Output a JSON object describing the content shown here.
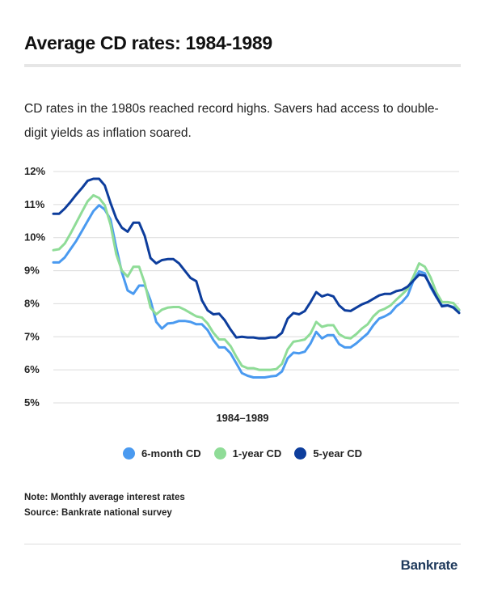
{
  "header": {
    "title": "Average CD rates: 1984-1989",
    "subtitle": "CD rates in the 1980s reached record highs. Savers had access to double-digit yields as inflation soared."
  },
  "chart_data": {
    "type": "line",
    "xlabel": "1984–1989",
    "ylabel": "",
    "ylim": [
      5,
      12
    ],
    "yticks": [
      5,
      6,
      7,
      8,
      9,
      10,
      11,
      12
    ],
    "ytick_suffix": "%",
    "grid": true,
    "legend": "bottom",
    "series": [
      {
        "name": "6-month CD",
        "color": "#4a9af0",
        "values": [
          9.25,
          9.25,
          9.4,
          9.65,
          9.9,
          10.2,
          10.5,
          10.8,
          10.98,
          10.85,
          10.55,
          9.7,
          8.95,
          8.4,
          8.3,
          8.55,
          8.55,
          8.1,
          7.45,
          7.25,
          7.4,
          7.42,
          7.48,
          7.48,
          7.45,
          7.38,
          7.38,
          7.2,
          6.9,
          6.68,
          6.68,
          6.5,
          6.2,
          5.9,
          5.82,
          5.77,
          5.77,
          5.77,
          5.8,
          5.82,
          5.95,
          6.35,
          6.52,
          6.5,
          6.55,
          6.8,
          7.15,
          6.95,
          7.05,
          7.05,
          6.78,
          6.68,
          6.68,
          6.8,
          6.95,
          7.1,
          7.35,
          7.55,
          7.62,
          7.72,
          7.92,
          8.05,
          8.25,
          8.7,
          8.98,
          8.92,
          8.5,
          8.2,
          7.95,
          7.95,
          7.9,
          7.8
        ]
      },
      {
        "name": "1-year CD",
        "color": "#8fdc97",
        "values": [
          9.62,
          9.65,
          9.82,
          10.12,
          10.45,
          10.78,
          11.1,
          11.28,
          11.2,
          10.98,
          10.4,
          9.5,
          9.0,
          8.82,
          9.12,
          9.12,
          8.62,
          7.88,
          7.68,
          7.82,
          7.88,
          7.9,
          7.9,
          7.82,
          7.72,
          7.62,
          7.58,
          7.4,
          7.12,
          6.92,
          6.92,
          6.72,
          6.4,
          6.12,
          6.05,
          6.05,
          6.0,
          6.0,
          6.0,
          6.02,
          6.18,
          6.62,
          6.85,
          6.88,
          6.92,
          7.1,
          7.45,
          7.3,
          7.35,
          7.35,
          7.08,
          6.98,
          6.95,
          7.08,
          7.25,
          7.38,
          7.62,
          7.78,
          7.85,
          7.95,
          8.12,
          8.28,
          8.45,
          8.82,
          9.22,
          9.12,
          8.8,
          8.35,
          8.05,
          8.05,
          8.02,
          7.82
        ]
      },
      {
        "name": "5-year CD",
        "color": "#0d3d9c",
        "values": [
          10.72,
          10.72,
          10.88,
          11.08,
          11.3,
          11.5,
          11.72,
          11.78,
          11.78,
          11.58,
          11.05,
          10.58,
          10.3,
          10.18,
          10.45,
          10.45,
          10.05,
          9.38,
          9.22,
          9.32,
          9.35,
          9.35,
          9.22,
          9.0,
          8.78,
          8.68,
          8.1,
          7.8,
          7.68,
          7.7,
          7.5,
          7.22,
          6.98,
          7.0,
          6.98,
          6.98,
          6.95,
          6.95,
          6.98,
          6.98,
          7.12,
          7.55,
          7.72,
          7.68,
          7.78,
          8.05,
          8.35,
          8.22,
          8.28,
          8.22,
          7.95,
          7.8,
          7.78,
          7.88,
          7.98,
          8.05,
          8.15,
          8.25,
          8.3,
          8.3,
          8.38,
          8.42,
          8.52,
          8.7,
          8.88,
          8.85,
          8.55,
          8.22,
          7.92,
          7.95,
          7.88,
          7.72
        ]
      }
    ]
  },
  "notes": {
    "note": "Note: Monthly average interest rates",
    "source": "Source: Bankrate national survey"
  },
  "brand": {
    "name": "Bankrate"
  }
}
